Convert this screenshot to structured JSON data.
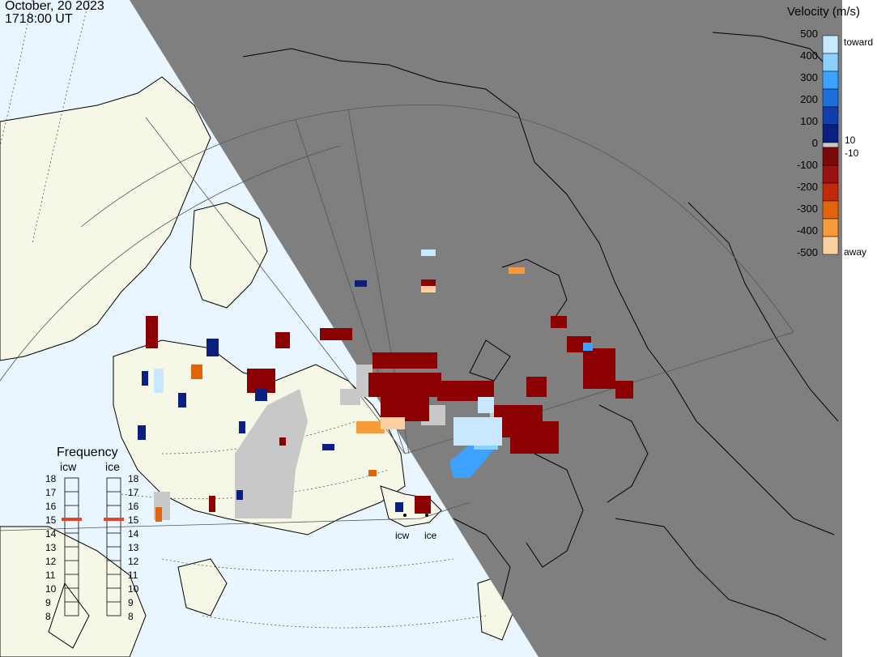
{
  "header": {
    "date": "October, 20 2023",
    "time": "1718:00 UT"
  },
  "legend": {
    "title": "Velocity (m/s)",
    "ticks": [
      "500",
      "400",
      "300",
      "200",
      "100",
      "0",
      "-100",
      "-200",
      "-300",
      "-400",
      "-500"
    ],
    "toward_label": "toward",
    "away_label": "away",
    "small_pos": "10",
    "small_neg": "-10",
    "colors": [
      "#c7e8ff",
      "#8cd0ff",
      "#3da2ff",
      "#1e6fd9",
      "#0f3fa8",
      "#0b1f80",
      "#7a0a0a",
      "#9b1111",
      "#c02a0a",
      "#e0650a",
      "#f79a3a",
      "#fcd0a0"
    ]
  },
  "frequency": {
    "title": "Frequency",
    "radars": [
      {
        "name": "icw",
        "value": 15
      },
      {
        "name": "ice",
        "value": 15
      }
    ],
    "scale": [
      "18",
      "17",
      "16",
      "15",
      "14",
      "13",
      "12",
      "11",
      "10",
      "9",
      "8"
    ]
  },
  "radar_sites": [
    "icw",
    "ice"
  ],
  "colors": {
    "ocean": "#e9f5ff",
    "land": "#f7f7e8",
    "night": "#7f7f7f",
    "ground_scatter": "#c8c8c8",
    "freq_marker": "#d9482a"
  }
}
